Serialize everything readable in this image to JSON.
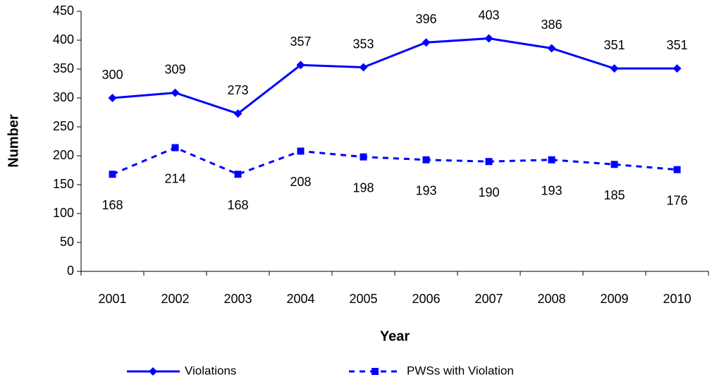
{
  "chart_data": {
    "type": "line",
    "x_label": "Year",
    "y_label": "Number",
    "categories": [
      "2001",
      "2002",
      "2003",
      "2004",
      "2005",
      "2006",
      "2007",
      "2008",
      "2009",
      "2010"
    ],
    "series": [
      {
        "name": "Violations",
        "color": "#0000ff",
        "linestyle": "solid",
        "marker": "diamond",
        "label_position": "above",
        "values": [
          300,
          309,
          273,
          357,
          353,
          396,
          403,
          386,
          351,
          351
        ]
      },
      {
        "name": "PWSs with Violation",
        "color": "#0000ff",
        "linestyle": "dashed",
        "marker": "square",
        "label_position": "below",
        "values": [
          168,
          214,
          168,
          208,
          198,
          193,
          190,
          193,
          185,
          176
        ]
      }
    ],
    "ylim": [
      0,
      450
    ],
    "yticks": [
      0,
      50,
      100,
      150,
      200,
      250,
      300,
      350,
      400,
      450
    ],
    "grid": false,
    "legend": "bottom"
  }
}
